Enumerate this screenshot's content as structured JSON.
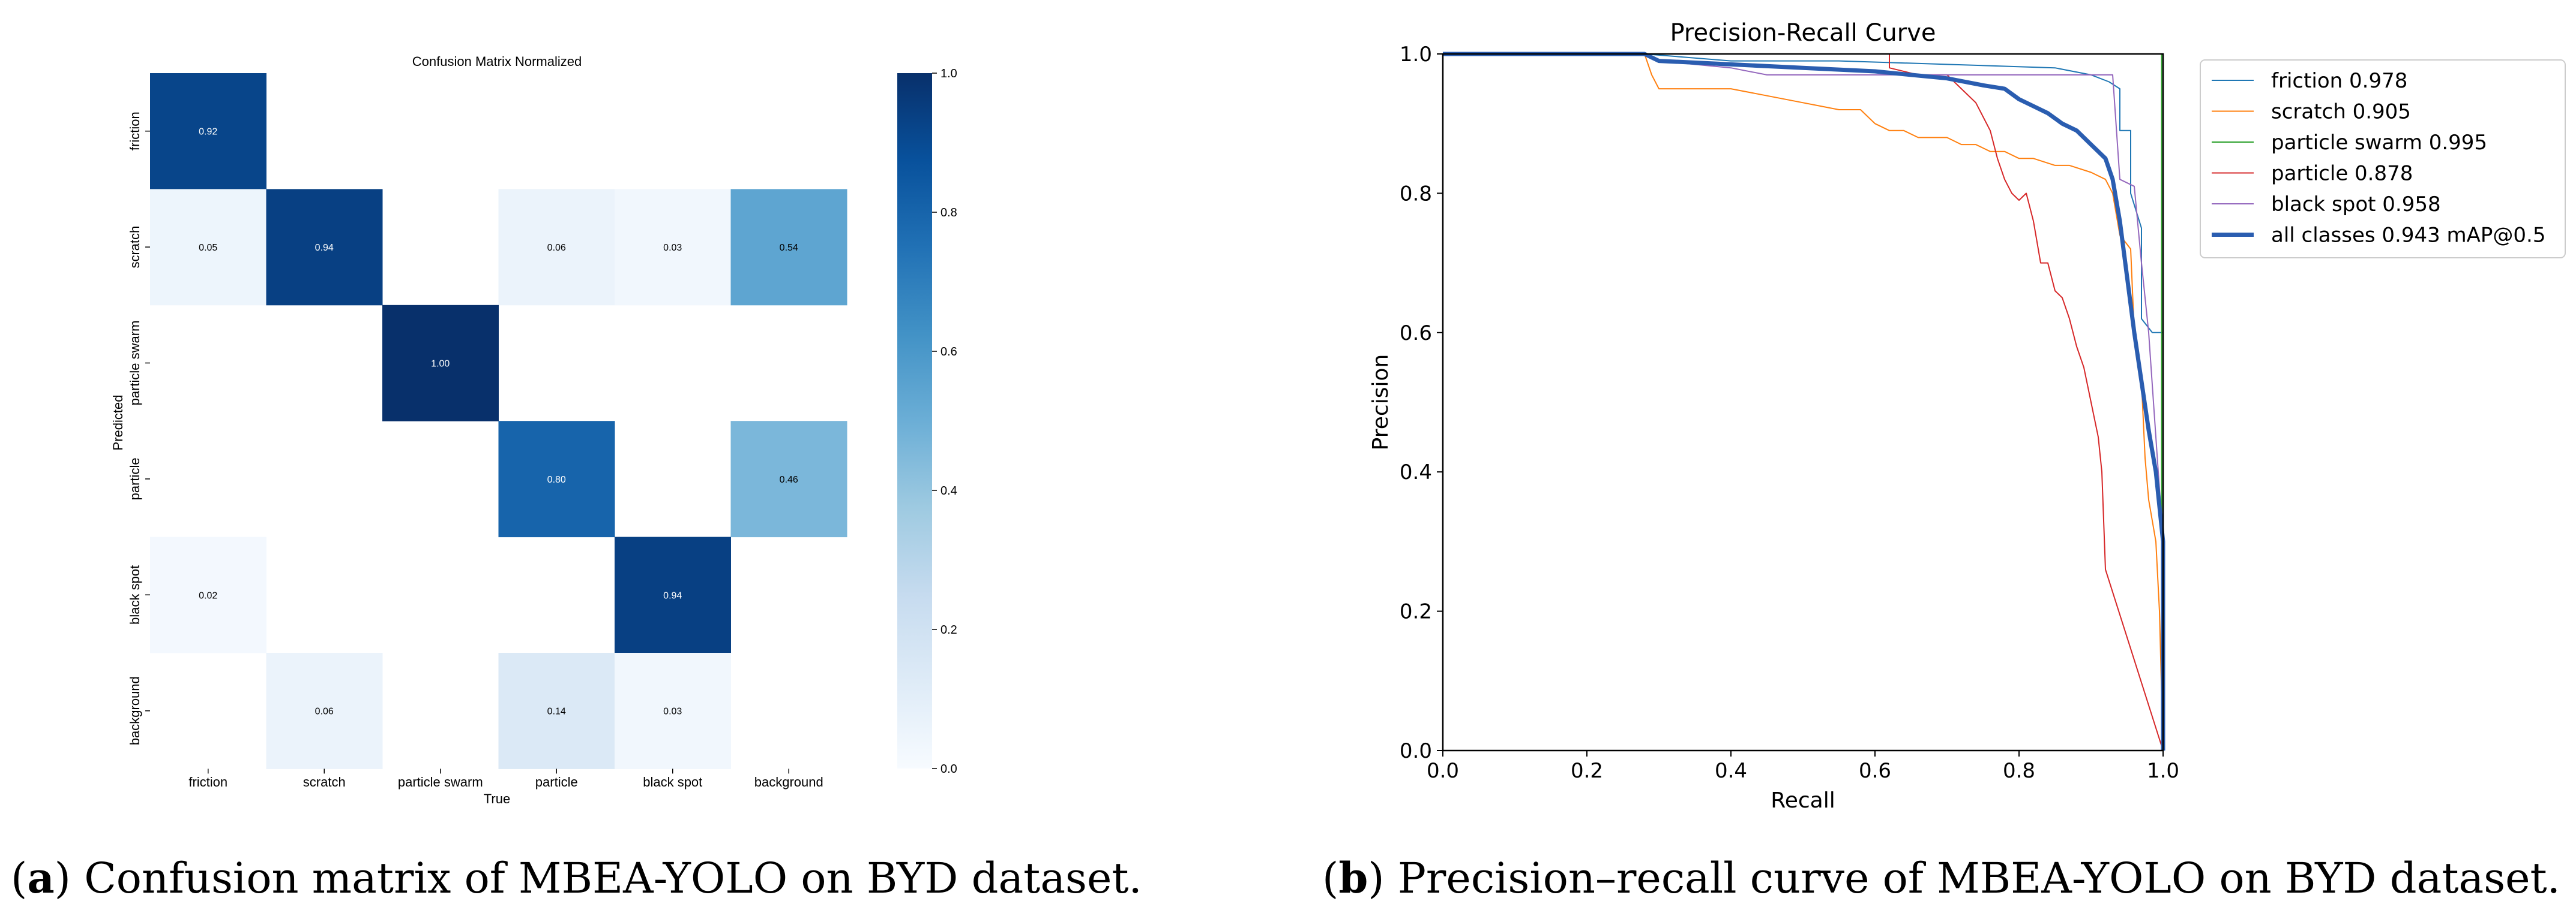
{
  "chart_data": [
    {
      "type": "heatmap",
      "title": "Confusion Matrix Normalized",
      "xlabel": "True",
      "ylabel": "Predicted",
      "x_categories": [
        "friction",
        "scratch",
        "particle swarm",
        "particle",
        "black spot",
        "background"
      ],
      "y_categories": [
        "friction",
        "scratch",
        "particle swarm",
        "particle",
        "black spot",
        "background"
      ],
      "values": [
        [
          0.92,
          null,
          null,
          null,
          null,
          null
        ],
        [
          0.05,
          0.94,
          null,
          0.06,
          0.03,
          0.54
        ],
        [
          null,
          null,
          1.0,
          null,
          null,
          null
        ],
        [
          null,
          null,
          null,
          0.8,
          null,
          0.46
        ],
        [
          0.02,
          null,
          null,
          null,
          0.94,
          null
        ],
        [
          null,
          0.06,
          null,
          0.14,
          0.03,
          null
        ]
      ],
      "colorbar_range": [
        0.0,
        1.0
      ],
      "colorbar_ticks": [
        "0.0",
        "0.2",
        "0.4",
        "0.6",
        "0.8",
        "1.0"
      ],
      "colormap": [
        "#f7fbff",
        "#deebf7",
        "#c6dbef",
        "#9ecae1",
        "#6baed6",
        "#4292c6",
        "#2171b5",
        "#08519c",
        "#08306b"
      ]
    },
    {
      "type": "line",
      "title": "Precision-Recall Curve",
      "xlabel": "Recall",
      "ylabel": "Precision",
      "xlim": [
        0.0,
        1.0
      ],
      "ylim": [
        0.0,
        1.0
      ],
      "x_ticks": [
        "0.0",
        "0.2",
        "0.4",
        "0.6",
        "0.8",
        "1.0"
      ],
      "y_ticks": [
        "0.0",
        "0.2",
        "0.4",
        "0.6",
        "0.8",
        "1.0"
      ],
      "legend_position": "outside top-right",
      "series": [
        {
          "name": "friction 0.978",
          "color": "#1f77b4",
          "width": 2,
          "points": [
            [
              0,
              1
            ],
            [
              0.28,
              1
            ],
            [
              0.4,
              0.99
            ],
            [
              0.55,
              0.99
            ],
            [
              0.7,
              0.985
            ],
            [
              0.85,
              0.98
            ],
            [
              0.9,
              0.97
            ],
            [
              0.925,
              0.96
            ],
            [
              0.94,
              0.95
            ],
            [
              0.94,
              0.89
            ],
            [
              0.955,
              0.89
            ],
            [
              0.955,
              0.8
            ],
            [
              0.97,
              0.75
            ],
            [
              0.97,
              0.62
            ],
            [
              0.985,
              0.6
            ],
            [
              1,
              0.6
            ],
            [
              1,
              0
            ]
          ]
        },
        {
          "name": "scratch 0.905",
          "color": "#ff7f0e",
          "width": 2,
          "points": [
            [
              0,
              1
            ],
            [
              0.28,
              1
            ],
            [
              0.29,
              0.97
            ],
            [
              0.3,
              0.95
            ],
            [
              0.4,
              0.95
            ],
            [
              0.45,
              0.94
            ],
            [
              0.5,
              0.93
            ],
            [
              0.55,
              0.92
            ],
            [
              0.58,
              0.92
            ],
            [
              0.6,
              0.9
            ],
            [
              0.62,
              0.89
            ],
            [
              0.64,
              0.89
            ],
            [
              0.66,
              0.88
            ],
            [
              0.7,
              0.88
            ],
            [
              0.72,
              0.87
            ],
            [
              0.74,
              0.87
            ],
            [
              0.76,
              0.86
            ],
            [
              0.78,
              0.86
            ],
            [
              0.8,
              0.85
            ],
            [
              0.82,
              0.85
            ],
            [
              0.85,
              0.84
            ],
            [
              0.87,
              0.84
            ],
            [
              0.9,
              0.83
            ],
            [
              0.92,
              0.82
            ],
            [
              0.93,
              0.8
            ],
            [
              0.94,
              0.74
            ],
            [
              0.955,
              0.72
            ],
            [
              0.96,
              0.6
            ],
            [
              0.965,
              0.56
            ],
            [
              0.97,
              0.53
            ],
            [
              0.975,
              0.42
            ],
            [
              0.98,
              0.36
            ],
            [
              0.985,
              0.33
            ],
            [
              0.99,
              0.3
            ],
            [
              0.995,
              0.2
            ],
            [
              1,
              0
            ]
          ]
        },
        {
          "name": "particle swarm 0.995",
          "color": "#2ca02c",
          "width": 2,
          "points": [
            [
              0,
              1
            ],
            [
              0.92,
              1
            ],
            [
              0.92,
              1
            ],
            [
              0.998,
              1
            ],
            [
              0.998,
              0
            ]
          ]
        },
        {
          "name": "particle 0.878",
          "color": "#d62728",
          "width": 2,
          "points": [
            [
              0,
              1
            ],
            [
              0.62,
              1
            ],
            [
              0.62,
              0.98
            ],
            [
              0.66,
              0.97
            ],
            [
              0.7,
              0.97
            ],
            [
              0.72,
              0.95
            ],
            [
              0.74,
              0.93
            ],
            [
              0.76,
              0.89
            ],
            [
              0.77,
              0.85
            ],
            [
              0.78,
              0.82
            ],
            [
              0.79,
              0.8
            ],
            [
              0.8,
              0.79
            ],
            [
              0.81,
              0.8
            ],
            [
              0.82,
              0.76
            ],
            [
              0.83,
              0.7
            ],
            [
              0.84,
              0.7
            ],
            [
              0.85,
              0.66
            ],
            [
              0.86,
              0.65
            ],
            [
              0.87,
              0.62
            ],
            [
              0.88,
              0.58
            ],
            [
              0.89,
              0.55
            ],
            [
              0.9,
              0.5
            ],
            [
              0.91,
              0.45
            ],
            [
              0.915,
              0.4
            ],
            [
              0.92,
              0.26
            ],
            [
              1,
              0
            ]
          ]
        },
        {
          "name": "black spot 0.958",
          "color": "#9467bd",
          "width": 2,
          "points": [
            [
              0,
              1
            ],
            [
              0.28,
              1
            ],
            [
              0.3,
              0.99
            ],
            [
              0.4,
              0.98
            ],
            [
              0.45,
              0.97
            ],
            [
              0.6,
              0.97
            ],
            [
              0.8,
              0.97
            ],
            [
              0.93,
              0.97
            ],
            [
              0.94,
              0.82
            ],
            [
              0.96,
              0.81
            ],
            [
              0.97,
              0.7
            ],
            [
              0.98,
              0.6
            ],
            [
              0.99,
              0.45
            ],
            [
              1,
              0.3
            ],
            [
              1,
              0
            ]
          ]
        },
        {
          "name": "all classes 0.943 mAP@0.5",
          "color": "#2a5db0",
          "width": 7,
          "points": [
            [
              0,
              1
            ],
            [
              0.28,
              1
            ],
            [
              0.3,
              0.99
            ],
            [
              0.4,
              0.985
            ],
            [
              0.5,
              0.98
            ],
            [
              0.6,
              0.975
            ],
            [
              0.65,
              0.97
            ],
            [
              0.7,
              0.965
            ],
            [
              0.75,
              0.955
            ],
            [
              0.78,
              0.95
            ],
            [
              0.8,
              0.935
            ],
            [
              0.82,
              0.925
            ],
            [
              0.84,
              0.915
            ],
            [
              0.86,
              0.9
            ],
            [
              0.88,
              0.89
            ],
            [
              0.9,
              0.87
            ],
            [
              0.92,
              0.85
            ],
            [
              0.93,
              0.82
            ],
            [
              0.94,
              0.76
            ],
            [
              0.95,
              0.68
            ],
            [
              0.96,
              0.6
            ],
            [
              0.97,
              0.53
            ],
            [
              0.98,
              0.46
            ],
            [
              0.99,
              0.4
            ],
            [
              1,
              0.3
            ],
            [
              1,
              0
            ]
          ]
        }
      ]
    }
  ],
  "captions": {
    "a_label": "a",
    "a_text": " Confusion matrix of MBEA-YOLO on BYD dataset.",
    "b_label": "b",
    "b_text": " Precision–recall curve of MBEA-YOLO on BYD dataset."
  }
}
